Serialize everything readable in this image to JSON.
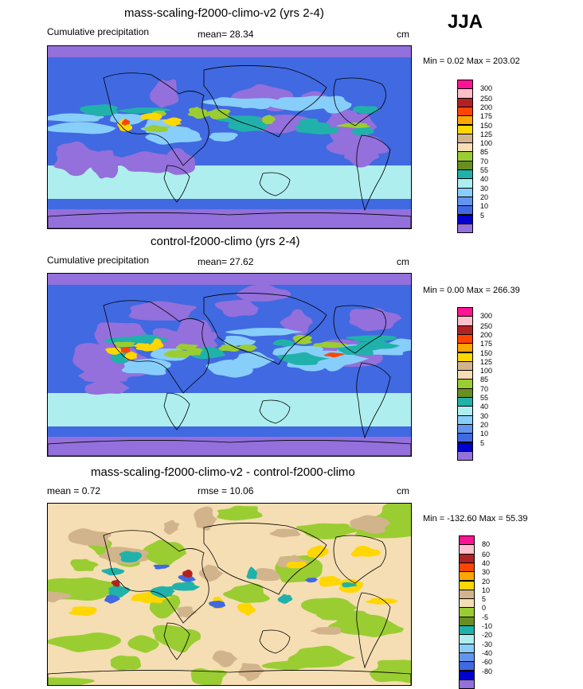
{
  "season": "JJA",
  "panels": [
    {
      "title": "mass-scaling-f2000-climo-v2 (yrs 2-4)",
      "left_label": "Cumulative precipitation",
      "stat": "mean=  28.34",
      "units": "cm",
      "minmax": "Min =   0.02 Max = 203.02",
      "map_kind": "precip-model",
      "colorbar": {
        "labels": [
          "300",
          "250",
          "200",
          "175",
          "150",
          "125",
          "100",
          "85",
          "70",
          "55",
          "40",
          "30",
          "20",
          "10",
          "5"
        ],
        "colors": [
          "#ff1493",
          "#ffc0cb",
          "#b22222",
          "#ff4500",
          "#ffa500",
          "#ffd700",
          "#d2b48c",
          "#f5deb3",
          "#9acd32",
          "#6b8e23",
          "#20b2aa",
          "#afeeee",
          "#87cefa",
          "#6495ed",
          "#4169e1",
          "#0000cd",
          "#9370db"
        ]
      }
    },
    {
      "title": "control-f2000-climo (yrs 2-4)",
      "left_label": "Cumulative precipitation",
      "stat": "mean=  27.62",
      "units": "cm",
      "minmax": "Min =   0.00 Max = 266.39",
      "map_kind": "precip-control",
      "colorbar": {
        "labels": [
          "300",
          "250",
          "200",
          "175",
          "150",
          "125",
          "100",
          "85",
          "70",
          "55",
          "40",
          "30",
          "20",
          "10",
          "5"
        ],
        "colors": [
          "#ff1493",
          "#ffc0cb",
          "#b22222",
          "#ff4500",
          "#ffa500",
          "#ffd700",
          "#d2b48c",
          "#f5deb3",
          "#9acd32",
          "#6b8e23",
          "#20b2aa",
          "#afeeee",
          "#87cefa",
          "#6495ed",
          "#4169e1",
          "#0000cd",
          "#9370db"
        ]
      }
    },
    {
      "title": "mass-scaling-f2000-climo-v2 - control-f2000-climo",
      "left_label": "mean =   0.72",
      "stat": "rmse =  10.06",
      "units": "cm",
      "minmax": "Min = -132.60 Max =  55.39",
      "map_kind": "diff",
      "colorbar": {
        "labels": [
          "80",
          "60",
          "40",
          "30",
          "20",
          "10",
          "5",
          "0",
          "-5",
          "-10",
          "-20",
          "-30",
          "-40",
          "-60",
          "-80"
        ],
        "colors": [
          "#ff1493",
          "#ffc0cb",
          "#b22222",
          "#ff4500",
          "#ffa500",
          "#ffd700",
          "#d2b48c",
          "#f5deb3",
          "#9acd32",
          "#6b8e23",
          "#20b2aa",
          "#afeeee",
          "#87cefa",
          "#6495ed",
          "#4169e1",
          "#0000cd",
          "#9370db"
        ]
      }
    }
  ]
}
